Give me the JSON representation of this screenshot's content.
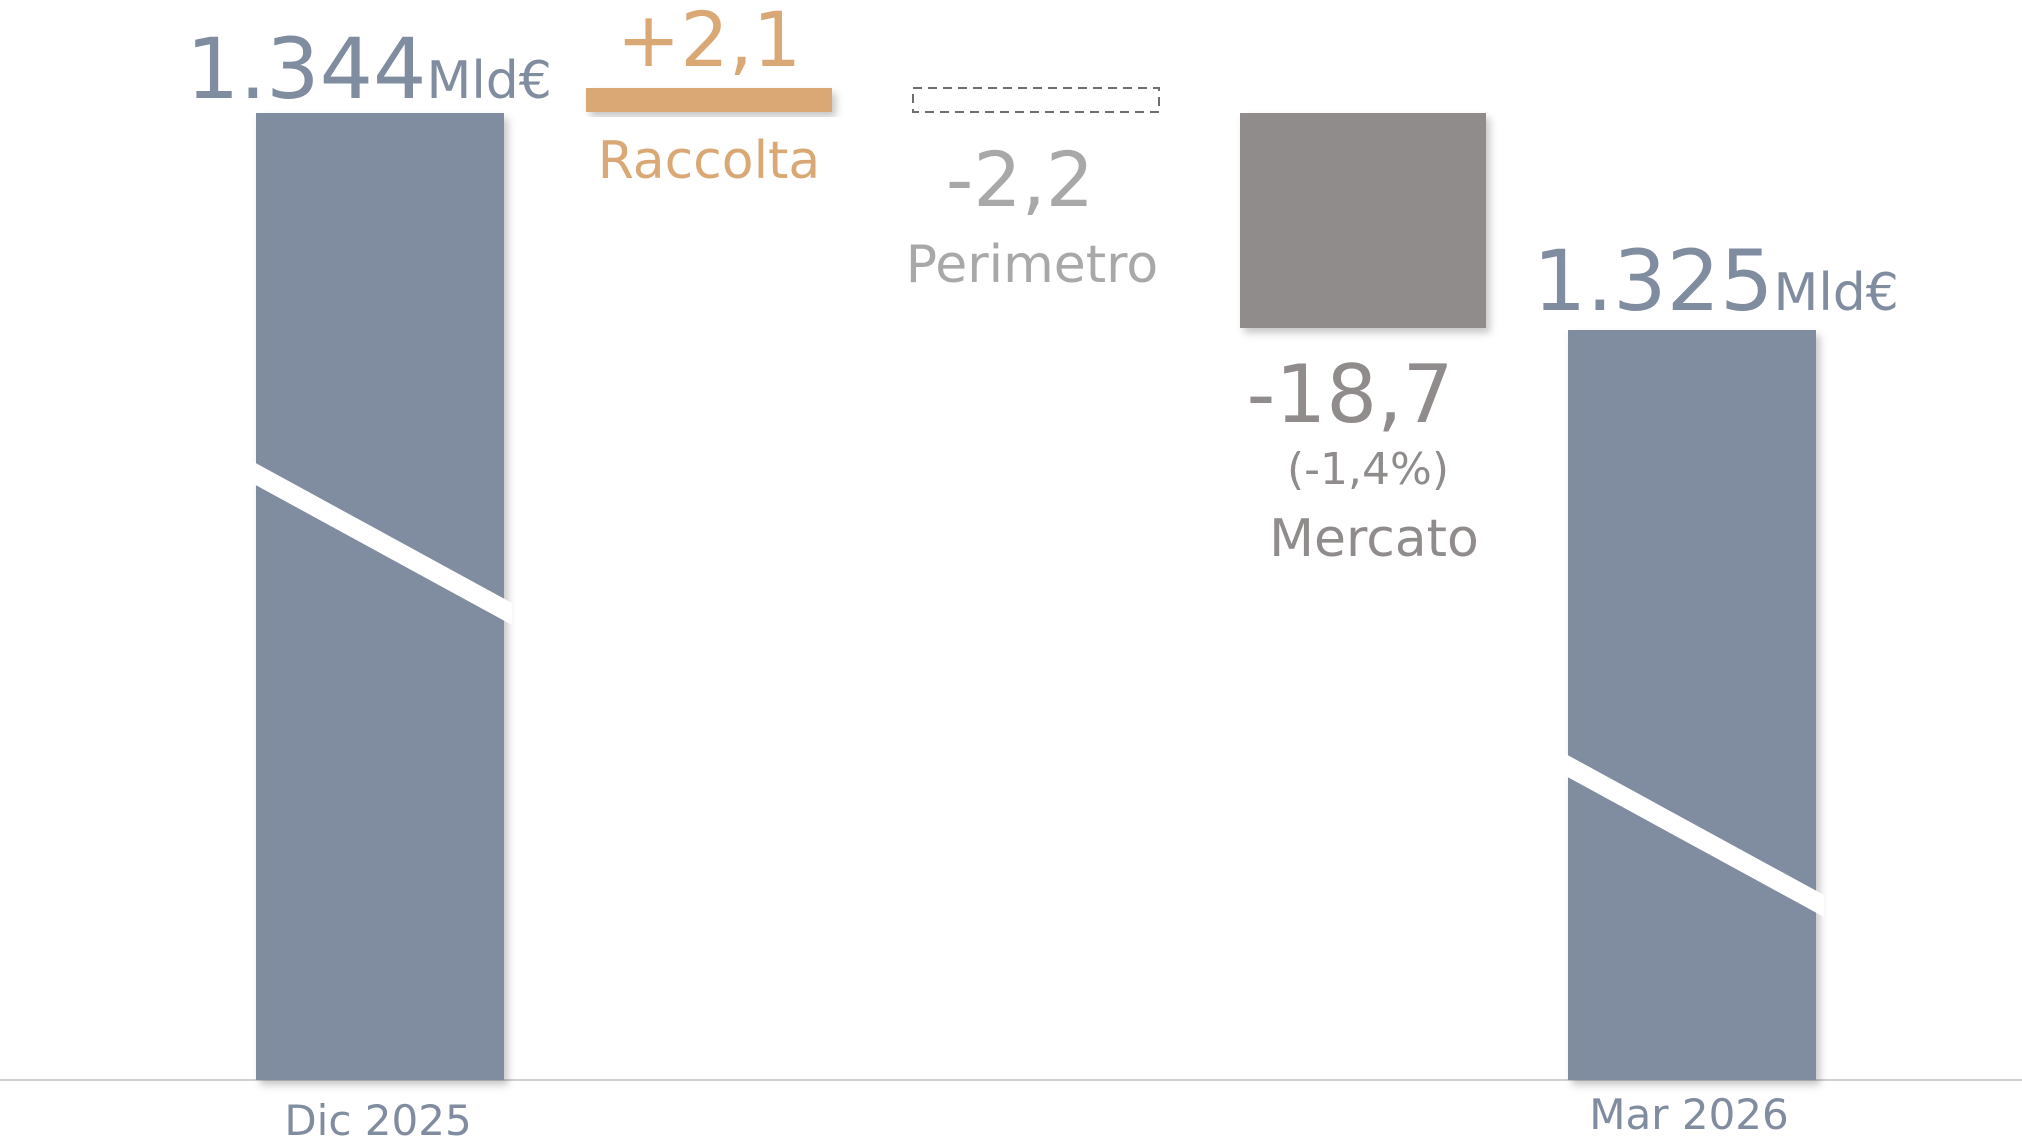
{
  "chart_data": {
    "type": "bar",
    "subtype": "waterfall",
    "unit": "Mld€",
    "axis_broken": true,
    "categories": [
      "Dic 2025",
      "Raccolta",
      "Perimetro",
      "Mercato",
      "Mar 2026"
    ],
    "steps": [
      {
        "key": "start",
        "label": "",
        "category": "Dic 2025",
        "kind": "total",
        "value": 1344,
        "value_label": "1.344",
        "unit_label": "Mld€",
        "color": "#808c9f"
      },
      {
        "key": "raccolta",
        "label": "Raccolta",
        "kind": "delta",
        "value": 2.1,
        "value_label": "+2,1",
        "color": "#d9a874"
      },
      {
        "key": "perimetro",
        "label": "Perimetro",
        "kind": "delta",
        "value": -2.2,
        "value_label": "-2,2",
        "color": "#a8a8a8",
        "style": "dashed-outline"
      },
      {
        "key": "mercato",
        "label": "Mercato",
        "kind": "delta",
        "value": -18.7,
        "value_label": "-18,7",
        "sub_label": "(-1,4%)",
        "color": "#8f8c8b"
      },
      {
        "key": "end",
        "label": "",
        "category": "Mar 2026",
        "kind": "total",
        "value": 1325,
        "value_label": "1.325",
        "unit_label": "Mld€",
        "color": "#808c9f"
      }
    ],
    "colors": {
      "total": "#808c9f",
      "raccolta": "#d9a874",
      "perimetro_text": "#a8a8a8",
      "mercato": "#8f8c8b",
      "axis": "#d0d0d0",
      "category_text": "#808c9f"
    }
  }
}
